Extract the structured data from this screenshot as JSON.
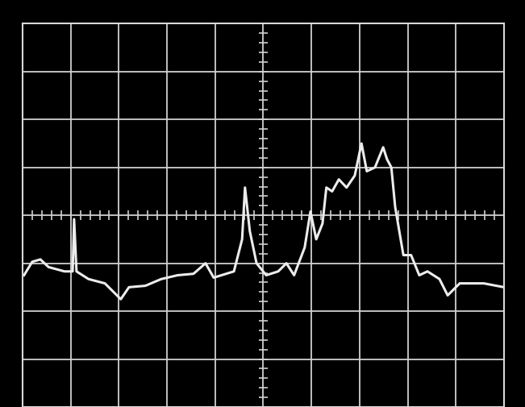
{
  "chart_data": {
    "type": "line",
    "x": [
      0.03,
      0.2,
      0.37,
      0.54,
      0.87,
      1.04,
      1.07,
      1.12,
      1.37,
      1.71,
      2.04,
      2.21,
      2.55,
      2.88,
      3.22,
      3.55,
      3.8,
      3.97,
      4.39,
      4.56,
      4.62,
      4.72,
      4.86,
      5.06,
      5.31,
      5.48,
      5.64,
      5.86,
      5.98,
      6.1,
      6.23,
      6.31,
      6.43,
      6.57,
      6.73,
      6.9,
      7.04,
      7.15,
      7.32,
      7.49,
      7.57,
      7.66,
      7.74,
      7.91,
      8.07,
      8.24,
      8.41,
      8.66,
      8.83,
      9.08,
      9.58,
      10.0
    ],
    "values": [
      -1.25,
      -0.97,
      -0.92,
      -1.08,
      -1.17,
      -1.17,
      -0.08,
      -1.17,
      -1.33,
      -1.42,
      -1.75,
      -1.5,
      -1.47,
      -1.33,
      -1.25,
      -1.22,
      -1.0,
      -1.3,
      -1.17,
      -0.5,
      0.58,
      -0.33,
      -1.0,
      -1.25,
      -1.17,
      -1.0,
      -1.25,
      -0.67,
      0.08,
      -0.5,
      -0.17,
      0.58,
      0.5,
      0.75,
      0.58,
      0.83,
      1.5,
      0.92,
      1.0,
      1.42,
      1.17,
      1.0,
      0.17,
      -0.83,
      -0.83,
      -1.25,
      -1.17,
      -1.33,
      -1.67,
      -1.42,
      -1.42,
      -1.5
    ],
    "color": "#ececec",
    "xlim": [
      0,
      10
    ],
    "xticks": [
      0,
      1,
      2,
      3,
      4,
      5,
      6,
      7,
      8,
      9,
      10
    ],
    "ylim": [
      -4,
      4
    ],
    "yticks": [
      -4,
      -3,
      -2,
      -1,
      0,
      1,
      2,
      3,
      4
    ],
    "grid": true,
    "tick_labels": false
  }
}
